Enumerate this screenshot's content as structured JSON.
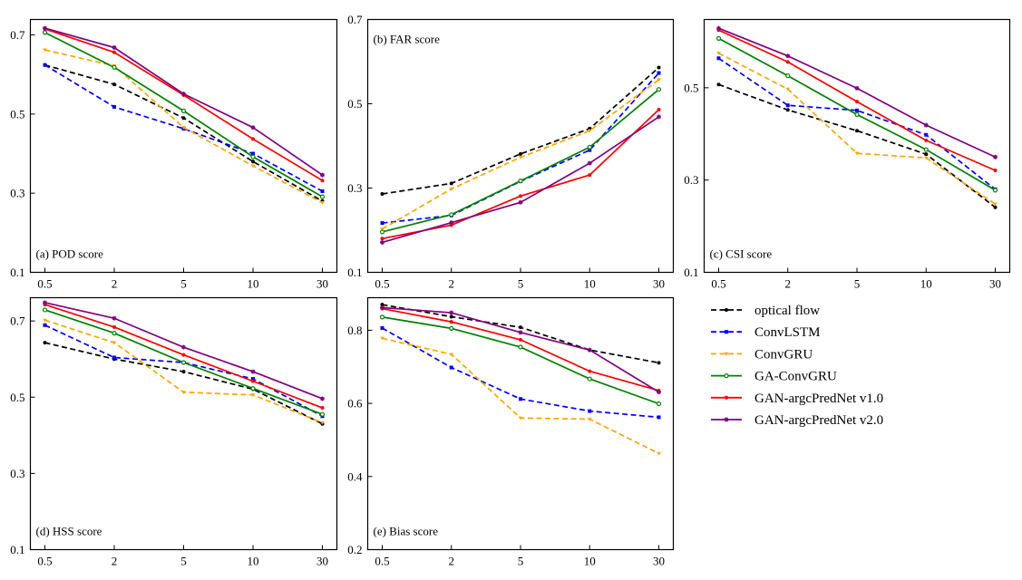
{
  "chart_data": [
    {
      "type": "line",
      "title": "(a) POD score",
      "xlabel": "",
      "ylabel": "",
      "categories": [
        "0.5",
        "2",
        "5",
        "10",
        "30"
      ],
      "ylim": [
        0.1,
        0.739
      ],
      "yticks": [
        0.1,
        0.3,
        0.5,
        0.7
      ],
      "ytick_labels": [
        "0.1",
        "0.3",
        "0.5",
        "0.7"
      ],
      "label_position": "bottom-left",
      "series": [
        {
          "name": "optical flow",
          "values": [
            0.624,
            0.575,
            0.49,
            0.38,
            0.28
          ]
        },
        {
          "name": "ConvLSTM",
          "values": [
            0.624,
            0.518,
            0.463,
            0.4,
            0.305
          ]
        },
        {
          "name": "ConvGRU",
          "values": [
            0.662,
            0.622,
            0.466,
            0.369,
            0.276
          ]
        },
        {
          "name": "GA-ConvGRU",
          "values": [
            0.706,
            0.618,
            0.508,
            0.392,
            0.291
          ]
        },
        {
          "name": "GAN-argcPredNet v1.0",
          "values": [
            0.715,
            0.656,
            0.548,
            0.437,
            0.332
          ]
        },
        {
          "name": "GAN-argcPredNet v2.0",
          "values": [
            0.717,
            0.668,
            0.551,
            0.466,
            0.346
          ]
        }
      ]
    },
    {
      "type": "line",
      "title": "(b) FAR score",
      "xlabel": "",
      "ylabel": "",
      "categories": [
        "0.5",
        "2",
        "5",
        "10",
        "30"
      ],
      "ylim": [
        0.1,
        0.7
      ],
      "yticks": [
        0.1,
        0.3,
        0.5,
        0.7
      ],
      "ytick_labels": [
        "0.1",
        "0.3",
        "0.5",
        "0.7"
      ],
      "label_position": "top-left",
      "series": [
        {
          "name": "optical flow",
          "values": [
            0.286,
            0.311,
            0.381,
            0.441,
            0.586
          ]
        },
        {
          "name": "ConvLSTM",
          "values": [
            0.217,
            0.235,
            0.316,
            0.39,
            0.573
          ]
        },
        {
          "name": "ConvGRU",
          "values": [
            0.203,
            0.298,
            0.373,
            0.436,
            0.557
          ]
        },
        {
          "name": "GA-ConvGRU",
          "values": [
            0.196,
            0.237,
            0.317,
            0.397,
            0.534
          ]
        },
        {
          "name": "GAN-argcPredNet v1.0",
          "values": [
            0.18,
            0.212,
            0.281,
            0.331,
            0.486
          ]
        },
        {
          "name": "GAN-argcPredNet v2.0",
          "values": [
            0.171,
            0.218,
            0.266,
            0.359,
            0.469
          ]
        }
      ]
    },
    {
      "type": "line",
      "title": "(c) CSI score",
      "xlabel": "",
      "ylabel": "",
      "categories": [
        "0.5",
        "2",
        "5",
        "10",
        "30"
      ],
      "ylim": [
        0.1,
        0.648
      ],
      "yticks": [
        0.1,
        0.3,
        0.5
      ],
      "ytick_labels": [
        "0.1",
        "0.3",
        "0.5"
      ],
      "label_position": "bottom-left",
      "series": [
        {
          "name": "optical flow",
          "values": [
            0.507,
            0.452,
            0.407,
            0.356,
            0.241
          ]
        },
        {
          "name": "ConvLSTM",
          "values": [
            0.564,
            0.462,
            0.451,
            0.398,
            0.28
          ]
        },
        {
          "name": "ConvGRU",
          "values": [
            0.575,
            0.497,
            0.358,
            0.348,
            0.248
          ]
        },
        {
          "name": "GA-ConvGRU",
          "values": [
            0.607,
            0.526,
            0.442,
            0.366,
            0.278
          ]
        },
        {
          "name": "GAN-argcPredNet v1.0",
          "values": [
            0.625,
            0.556,
            0.47,
            0.386,
            0.321
          ]
        },
        {
          "name": "GAN-argcPredNet v2.0",
          "values": [
            0.629,
            0.569,
            0.499,
            0.419,
            0.35
          ]
        }
      ]
    },
    {
      "type": "line",
      "title": "(d) HSS score",
      "xlabel": "",
      "ylabel": "",
      "categories": [
        "0.5",
        "2",
        "5",
        "10",
        "30"
      ],
      "ylim": [
        0.1,
        0.761
      ],
      "yticks": [
        0.1,
        0.3,
        0.5,
        0.7
      ],
      "ytick_labels": [
        "0.1",
        "0.3",
        "0.5",
        "0.7"
      ],
      "label_position": "bottom-left",
      "series": [
        {
          "name": "optical flow",
          "values": [
            0.643,
            0.6,
            0.567,
            0.521,
            0.43
          ]
        },
        {
          "name": "ConvLSTM",
          "values": [
            0.689,
            0.604,
            0.591,
            0.548,
            0.45
          ]
        },
        {
          "name": "ConvGRU",
          "values": [
            0.702,
            0.643,
            0.513,
            0.506,
            0.433
          ]
        },
        {
          "name": "GA-ConvGRU",
          "values": [
            0.729,
            0.668,
            0.591,
            0.523,
            0.455
          ]
        },
        {
          "name": "GAN-argcPredNet v1.0",
          "values": [
            0.743,
            0.684,
            0.611,
            0.542,
            0.472
          ]
        },
        {
          "name": "GAN-argcPredNet v2.0",
          "values": [
            0.748,
            0.707,
            0.631,
            0.567,
            0.496
          ]
        }
      ]
    },
    {
      "type": "line",
      "title": "(e) Bias score",
      "xlabel": "",
      "ylabel": "",
      "categories": [
        "0.5",
        "2",
        "5",
        "10",
        "30"
      ],
      "ylim": [
        0.2,
        0.889
      ],
      "yticks": [
        0.2,
        0.4,
        0.6,
        0.8
      ],
      "ytick_labels": [
        "0.2",
        "0.4",
        "0.6",
        "0.8"
      ],
      "label_position": "bottom-left",
      "series": [
        {
          "name": "optical flow",
          "values": [
            0.87,
            0.837,
            0.808,
            0.746,
            0.711
          ]
        },
        {
          "name": "ConvLSTM",
          "values": [
            0.806,
            0.698,
            0.612,
            0.579,
            0.562
          ]
        },
        {
          "name": "ConvGRU",
          "values": [
            0.778,
            0.734,
            0.56,
            0.557,
            0.463
          ]
        },
        {
          "name": "GA-ConvGRU",
          "values": [
            0.836,
            0.805,
            0.754,
            0.667,
            0.599
          ]
        },
        {
          "name": "GAN-argcPredNet v1.0",
          "values": [
            0.859,
            0.823,
            0.774,
            0.688,
            0.635
          ]
        },
        {
          "name": "GAN-argcPredNet v2.0",
          "values": [
            0.862,
            0.848,
            0.794,
            0.746,
            0.631
          ]
        }
      ]
    }
  ],
  "legend": {
    "position": "right of bottom row",
    "entries": [
      {
        "name": "optical flow",
        "color": "#000000",
        "style": "dashed",
        "marker": "dot"
      },
      {
        "name": "ConvLSTM",
        "color": "#0000ff",
        "style": "dashed",
        "marker": "square"
      },
      {
        "name": "ConvGRU",
        "color": "#ffa500",
        "style": "dashed",
        "marker": "triangle"
      },
      {
        "name": "GA-ConvGRU",
        "color": "#008000",
        "style": "solid",
        "marker": "hollow-circle"
      },
      {
        "name": "GAN-argcPredNet v1.0",
        "color": "#ff0000",
        "style": "solid",
        "marker": "dot"
      },
      {
        "name": "GAN-argcPredNet v2.0",
        "color": "#800080",
        "style": "solid",
        "marker": "star"
      }
    ]
  }
}
